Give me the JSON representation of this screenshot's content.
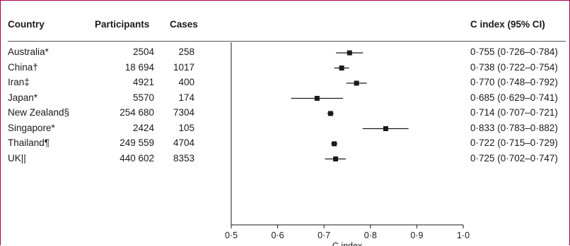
{
  "headers": {
    "country": "Country",
    "participants": "Participants",
    "cases": "Cases",
    "cindex": "C index (95% CI)"
  },
  "rows": [
    {
      "country": "Australia*",
      "participants": "2504",
      "cases": "258",
      "ci_text": "0·755 (0·726–0·784)"
    },
    {
      "country": "China†",
      "participants": "18 694",
      "cases": "1017",
      "ci_text": "0·738 (0·722–0·754)"
    },
    {
      "country": "Iran‡",
      "participants": "4921",
      "cases": "400",
      "ci_text": "0·770 (0·748–0·792)"
    },
    {
      "country": "Japan*",
      "participants": "5570",
      "cases": "174",
      "ci_text": "0·685 (0·629–0·741)"
    },
    {
      "country": "New Zealand§",
      "participants": "254 680",
      "cases": "7304",
      "ci_text": "0·714 (0·707–0·721)"
    },
    {
      "country": "Singapore*",
      "participants": "2424",
      "cases": "105",
      "ci_text": "0·833 (0·783–0·882)"
    },
    {
      "country": "Thailand¶",
      "participants": "249 559",
      "cases": "4704",
      "ci_text": "0·722 (0·715–0·729)"
    },
    {
      "country": "UK||",
      "participants": "440 602",
      "cases": "8353",
      "ci_text": "0·725 (0·702–0·747)"
    }
  ],
  "chart_data": {
    "type": "scatter",
    "xlabel": "C index",
    "xlim": [
      0.5,
      1.0
    ],
    "xticks": [
      0.5,
      0.6,
      0.7,
      0.8,
      0.9,
      1.0
    ],
    "xtick_labels": [
      "0·5",
      "0·6",
      "0·7",
      "0·8",
      "0·9",
      "1·0"
    ],
    "categories": [
      "Australia*",
      "China†",
      "Iran‡",
      "Japan*",
      "New Zealand§",
      "Singapore*",
      "Thailand¶",
      "UK||"
    ],
    "series": [
      {
        "values": [
          0.755,
          0.738,
          0.77,
          0.685,
          0.714,
          0.833,
          0.722,
          0.725
        ],
        "lower": [
          0.726,
          0.722,
          0.748,
          0.629,
          0.707,
          0.783,
          0.715,
          0.702
        ],
        "upper": [
          0.784,
          0.754,
          0.792,
          0.741,
          0.721,
          0.882,
          0.729,
          0.747
        ]
      }
    ],
    "grid": false,
    "color": "#1a1a1a"
  }
}
